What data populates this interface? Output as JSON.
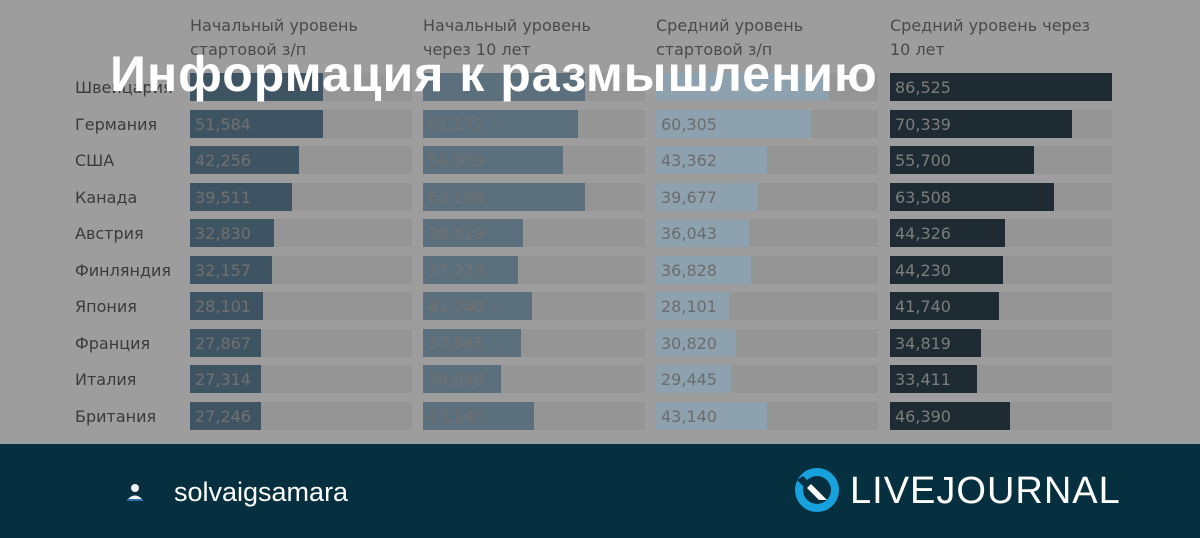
{
  "title": "Информация к размышлению",
  "columns": [
    {
      "header": [
        "Начальный уровень",
        "стартовой з/п"
      ],
      "color": "#3f5462"
    },
    {
      "header": [
        "Начальный уровень",
        "через 10 лет"
      ],
      "color": "#5b6f7c"
    },
    {
      "header": [
        "Средний уровень",
        "стартовой з/п"
      ],
      "color": "#8ea1ae"
    },
    {
      "header": [
        "Средний уровень через",
        "10 лет"
      ],
      "color": "#1f2b33"
    }
  ],
  "rows": [
    {
      "country": "Швейцария",
      "values": [
        "",
        "",
        "",
        "86,525"
      ],
      "fractions": [
        0.6,
        0.73,
        0.78,
        1.0
      ]
    },
    {
      "country": "Германия",
      "values": [
        "51,584",
        "61,172",
        "60,305",
        "70,339"
      ],
      "fractions": [
        0.6,
        0.7,
        0.7,
        0.82
      ]
    },
    {
      "country": "США",
      "values": [
        "42,256",
        "54,639",
        "43,362",
        "55,700"
      ],
      "fractions": [
        0.49,
        0.63,
        0.5,
        0.65
      ]
    },
    {
      "country": "Канада",
      "values": [
        "39,511",
        "63,188",
        "39,677",
        "63,508"
      ],
      "fractions": [
        0.46,
        0.73,
        0.46,
        0.74
      ]
    },
    {
      "country": "Австрия",
      "values": [
        "32,830",
        "38,619",
        "36,043",
        "44,326"
      ],
      "fractions": [
        0.38,
        0.45,
        0.42,
        0.52
      ]
    },
    {
      "country": "Финляндия",
      "values": [
        "32,157",
        "37,223",
        "36,828",
        "44,230"
      ],
      "fractions": [
        0.37,
        0.43,
        0.43,
        0.51
      ]
    },
    {
      "country": "Япония",
      "values": [
        "28,101",
        "41,740",
        "28,101",
        "41,740"
      ],
      "fractions": [
        0.33,
        0.49,
        0.33,
        0.49
      ]
    },
    {
      "country": "Франция",
      "values": [
        "27,867",
        "37,865",
        "30,820",
        "34,819"
      ],
      "fractions": [
        0.32,
        0.44,
        0.36,
        0.41
      ]
    },
    {
      "country": "Италия",
      "values": [
        "27,314",
        "30,048",
        "29,445",
        "33,411"
      ],
      "fractions": [
        0.32,
        0.35,
        0.34,
        0.39
      ]
    },
    {
      "country": "Британия",
      "values": [
        "27,246",
        "43,140",
        "43,140",
        "46,390"
      ],
      "fractions": [
        0.32,
        0.5,
        0.5,
        0.54
      ]
    }
  ],
  "footer": {
    "username": "solvaigsamara",
    "brand": "LIVEJOURNAL",
    "background": "#06303f",
    "logo_color": "#17a2dd"
  }
}
